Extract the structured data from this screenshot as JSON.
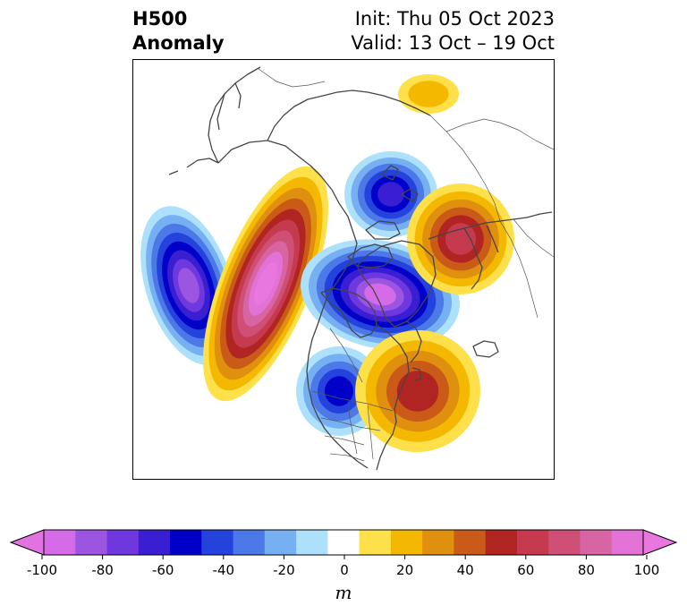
{
  "title": {
    "line1": "H500",
    "line2": "Anomaly"
  },
  "dates": {
    "init": "Init: Thu 05 Oct 2023",
    "valid": "Valid: 13 Oct – 19 Oct"
  },
  "colorbar": {
    "unit": "m",
    "ticks": [
      "-100",
      "-80",
      "-60",
      "-40",
      "-20",
      "0",
      "20",
      "40",
      "60",
      "80",
      "100"
    ],
    "levels": [
      -100,
      -90,
      -80,
      -70,
      -60,
      -50,
      -40,
      -30,
      -20,
      -10,
      10,
      20,
      30,
      40,
      50,
      60,
      70,
      80,
      90,
      100
    ],
    "colors": [
      "#d56be6",
      "#9b55e0",
      "#6e38de",
      "#3a1fd2",
      "#0000c8",
      "#2343dc",
      "#4c78e8",
      "#77b0f2",
      "#ade0fb",
      "#ffffff",
      "#fde04a",
      "#f5b800",
      "#e0900f",
      "#c95a17",
      "#b02421",
      "#c53a4e",
      "#cf4f76",
      "#d765a4",
      "#e272d6"
    ],
    "under_color": "#e272e2",
    "over_color": "#ea76e0"
  },
  "anomalies": [
    {
      "name": "pacific-trough",
      "peak": -80
    },
    {
      "name": "western-ridge",
      "peak": 100
    },
    {
      "name": "siberian-trough",
      "peak": -60
    },
    {
      "name": "central-arctic-trough",
      "peak": -90
    },
    {
      "name": "europe-ridge",
      "peak": 60
    },
    {
      "name": "us-trough",
      "peak": -50
    },
    {
      "name": "atlantic-ridge",
      "peak": 50
    },
    {
      "name": "arctic-ridge-north",
      "peak": 20
    }
  ]
}
